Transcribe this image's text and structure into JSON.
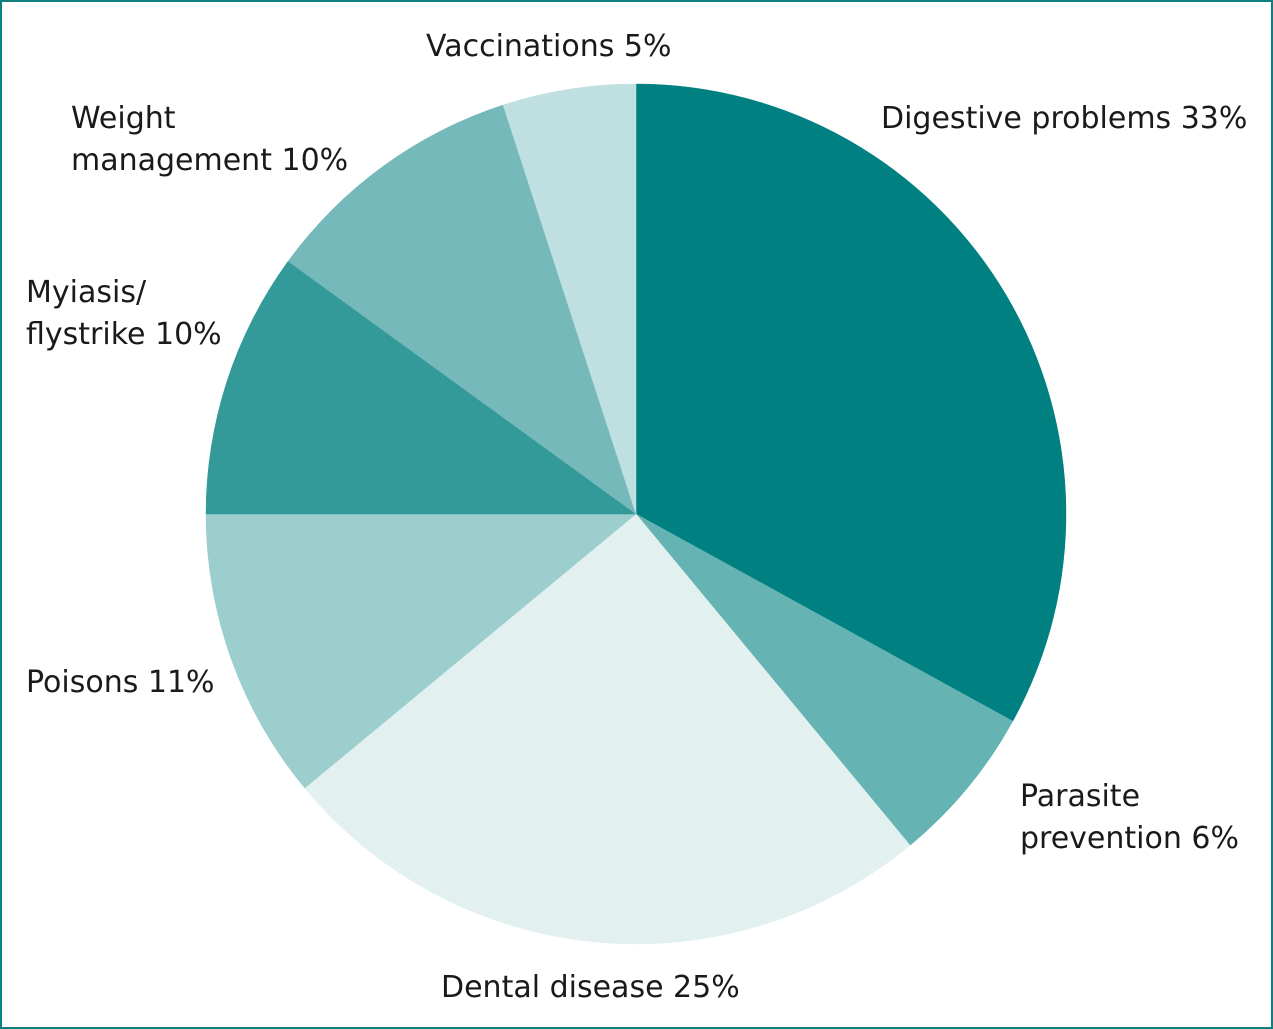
{
  "chart_data": {
    "type": "pie",
    "title": "",
    "slices": [
      {
        "label_lines": [
          "Digestive problems 33%"
        ],
        "value": 33,
        "color": "#008080"
      },
      {
        "label_lines": [
          "Parasite",
          "prevention 6%"
        ],
        "value": 6,
        "color": "#66b3b3"
      },
      {
        "label_lines": [
          "Dental disease 25%"
        ],
        "value": 25,
        "color": "#e3f0f0"
      },
      {
        "label_lines": [
          "Poisons 11%"
        ],
        "value": 11,
        "color": "#9ccece"
      },
      {
        "label_lines": [
          "Myiasis/",
          "flystrike 10%"
        ],
        "value": 10,
        "color": "#339999"
      },
      {
        "label_lines": [
          "Weight",
          "management 10%"
        ],
        "value": 10,
        "color": "#75b9bb"
      },
      {
        "label_lines": [
          "Vaccinations 5%"
        ],
        "value": 5,
        "color": "#bfdfe0"
      }
    ]
  }
}
